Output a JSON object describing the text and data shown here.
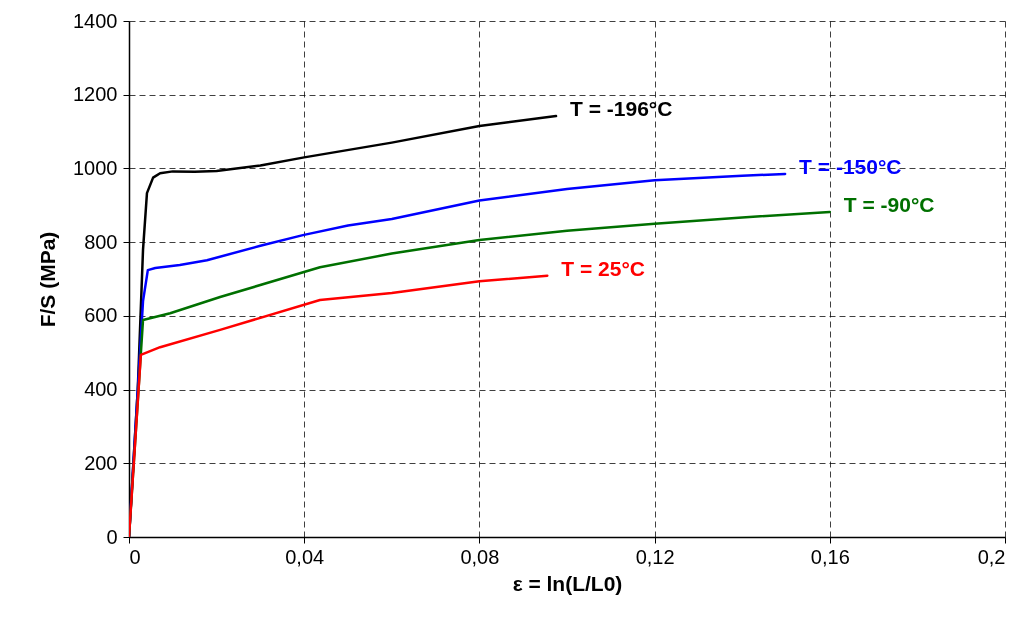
{
  "chart_data": {
    "type": "line",
    "xlabel": "ε = ln(L/L0)",
    "ylabel": "F/S (MPa)",
    "xlim": [
      0,
      0.2
    ],
    "ylim": [
      0,
      1400
    ],
    "xticks": [
      0,
      {
        "value": 0.04,
        "label": "0,04"
      },
      {
        "value": 0.08,
        "label": "0,08"
      },
      {
        "value": 0.12,
        "label": "0,12"
      },
      {
        "value": 0.16,
        "label": "0,16"
      },
      {
        "value": 0.2,
        "label": "0,2"
      }
    ],
    "yticks": [
      0,
      200,
      400,
      600,
      800,
      1000,
      1200,
      1400
    ],
    "grid": true,
    "series": [
      {
        "name": "T = -196°C",
        "color": "#000000",
        "x": [
          0,
          0.002,
          0.0032,
          0.0041,
          0.0055,
          0.0071,
          0.01,
          0.015,
          0.02,
          0.03,
          0.04,
          0.06,
          0.08,
          0.0975
        ],
        "values": [
          0,
          399,
          779,
          933,
          975,
          987,
          992,
          991,
          993,
          1008,
          1030,
          1070,
          1115,
          1142
        ]
      },
      {
        "name": "T = -150°C",
        "color": "#0000ff",
        "x": [
          0,
          0.0032,
          0.0043,
          0.006,
          0.0116,
          0.0178,
          0.03,
          0.0397,
          0.05,
          0.06,
          0.08,
          0.1,
          0.12,
          0.14,
          0.1498
        ],
        "values": [
          0,
          640,
          724,
          730,
          738,
          751,
          790,
          819,
          845,
          863,
          913,
          944,
          968,
          980,
          985
        ]
      },
      {
        "name": "T = -90°C",
        "color": "#007000",
        "x": [
          0,
          0.0032,
          0.0094,
          0.0208,
          0.0436,
          0.06,
          0.08,
          0.1,
          0.12,
          0.14,
          0.16
        ],
        "values": [
          0,
          589,
          607,
          651,
          732,
          769,
          806,
          831,
          850,
          867,
          882
        ]
      },
      {
        "name": "T = 25°C",
        "color": "#ff0000",
        "x": [
          0,
          0.0027,
          0.0071,
          0.0208,
          0.0436,
          0.06,
          0.08,
          0.0955
        ],
        "values": [
          0,
          494,
          515,
          562,
          643,
          662,
          694,
          709
        ]
      }
    ]
  }
}
